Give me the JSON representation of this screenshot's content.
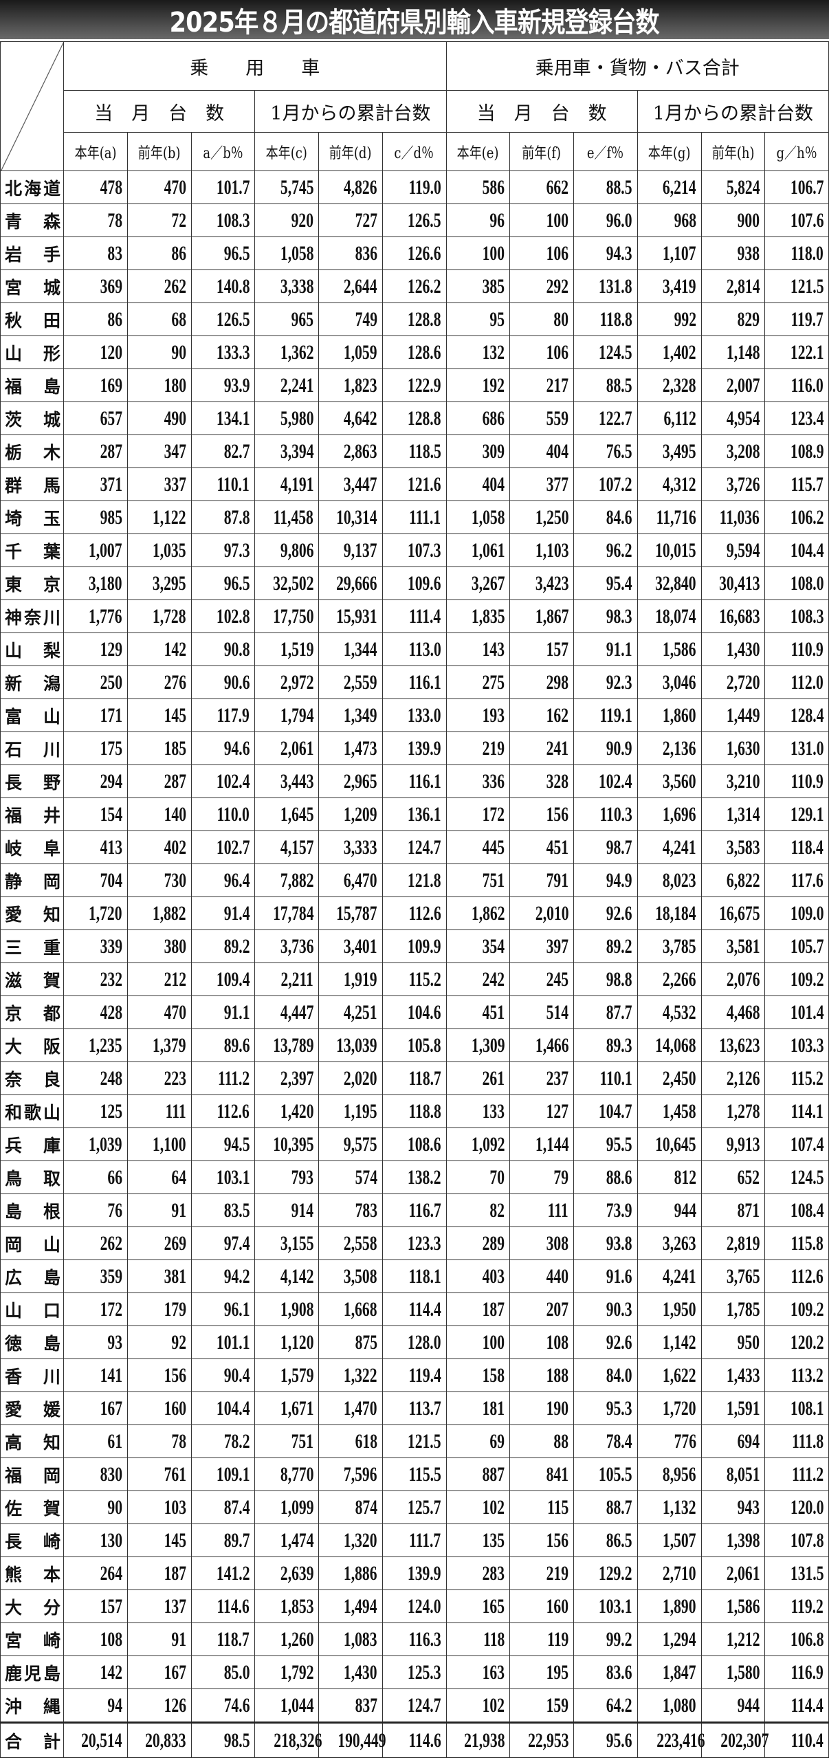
{
  "title": "2025年８月の都道府県別輸入車新規登録台数",
  "header": {
    "group1": "乗　　用　　車",
    "group2": "乗用車・貨物・バス合計",
    "sub": [
      "当　月　台　数",
      "1月からの累計台数",
      "当　月　台　数",
      "1月からの累計台数"
    ],
    "columns": [
      "本年(a)",
      "前年(b)",
      "a／b％",
      "本年(c)",
      "前年(d)",
      "c／d％",
      "本年(e)",
      "前年(f)",
      "e／f％",
      "本年(g)",
      "前年(h)",
      "g／h％"
    ]
  },
  "rows": [
    {
      "name": "北海道",
      "values": [
        "478",
        "470",
        "101.7",
        "5,745",
        "4,826",
        "119.0",
        "586",
        "662",
        "88.5",
        "6,214",
        "5,824",
        "106.7"
      ]
    },
    {
      "name": "青森",
      "values": [
        "78",
        "72",
        "108.3",
        "920",
        "727",
        "126.5",
        "96",
        "100",
        "96.0",
        "968",
        "900",
        "107.6"
      ]
    },
    {
      "name": "岩手",
      "values": [
        "83",
        "86",
        "96.5",
        "1,058",
        "836",
        "126.6",
        "100",
        "106",
        "94.3",
        "1,107",
        "938",
        "118.0"
      ]
    },
    {
      "name": "宮城",
      "values": [
        "369",
        "262",
        "140.8",
        "3,338",
        "2,644",
        "126.2",
        "385",
        "292",
        "131.8",
        "3,419",
        "2,814",
        "121.5"
      ]
    },
    {
      "name": "秋田",
      "values": [
        "86",
        "68",
        "126.5",
        "965",
        "749",
        "128.8",
        "95",
        "80",
        "118.8",
        "992",
        "829",
        "119.7"
      ]
    },
    {
      "name": "山形",
      "values": [
        "120",
        "90",
        "133.3",
        "1,362",
        "1,059",
        "128.6",
        "132",
        "106",
        "124.5",
        "1,402",
        "1,148",
        "122.1"
      ]
    },
    {
      "name": "福島",
      "values": [
        "169",
        "180",
        "93.9",
        "2,241",
        "1,823",
        "122.9",
        "192",
        "217",
        "88.5",
        "2,328",
        "2,007",
        "116.0"
      ]
    },
    {
      "name": "茨城",
      "values": [
        "657",
        "490",
        "134.1",
        "5,980",
        "4,642",
        "128.8",
        "686",
        "559",
        "122.7",
        "6,112",
        "4,954",
        "123.4"
      ]
    },
    {
      "name": "栃木",
      "values": [
        "287",
        "347",
        "82.7",
        "3,394",
        "2,863",
        "118.5",
        "309",
        "404",
        "76.5",
        "3,495",
        "3,208",
        "108.9"
      ]
    },
    {
      "name": "群馬",
      "values": [
        "371",
        "337",
        "110.1",
        "4,191",
        "3,447",
        "121.6",
        "404",
        "377",
        "107.2",
        "4,312",
        "3,726",
        "115.7"
      ]
    },
    {
      "name": "埼玉",
      "values": [
        "985",
        "1,122",
        "87.8",
        "11,458",
        "10,314",
        "111.1",
        "1,058",
        "1,250",
        "84.6",
        "11,716",
        "11,036",
        "106.2"
      ]
    },
    {
      "name": "千葉",
      "values": [
        "1,007",
        "1,035",
        "97.3",
        "9,806",
        "9,137",
        "107.3",
        "1,061",
        "1,103",
        "96.2",
        "10,015",
        "9,594",
        "104.4"
      ]
    },
    {
      "name": "東京",
      "values": [
        "3,180",
        "3,295",
        "96.5",
        "32,502",
        "29,666",
        "109.6",
        "3,267",
        "3,423",
        "95.4",
        "32,840",
        "30,413",
        "108.0"
      ]
    },
    {
      "name": "神奈川",
      "values": [
        "1,776",
        "1,728",
        "102.8",
        "17,750",
        "15,931",
        "111.4",
        "1,835",
        "1,867",
        "98.3",
        "18,074",
        "16,683",
        "108.3"
      ]
    },
    {
      "name": "山梨",
      "values": [
        "129",
        "142",
        "90.8",
        "1,519",
        "1,344",
        "113.0",
        "143",
        "157",
        "91.1",
        "1,586",
        "1,430",
        "110.9"
      ]
    },
    {
      "name": "新潟",
      "values": [
        "250",
        "276",
        "90.6",
        "2,972",
        "2,559",
        "116.1",
        "275",
        "298",
        "92.3",
        "3,046",
        "2,720",
        "112.0"
      ]
    },
    {
      "name": "富山",
      "values": [
        "171",
        "145",
        "117.9",
        "1,794",
        "1,349",
        "133.0",
        "193",
        "162",
        "119.1",
        "1,860",
        "1,449",
        "128.4"
      ]
    },
    {
      "name": "石川",
      "values": [
        "175",
        "185",
        "94.6",
        "2,061",
        "1,473",
        "139.9",
        "219",
        "241",
        "90.9",
        "2,136",
        "1,630",
        "131.0"
      ]
    },
    {
      "name": "長野",
      "values": [
        "294",
        "287",
        "102.4",
        "3,443",
        "2,965",
        "116.1",
        "336",
        "328",
        "102.4",
        "3,560",
        "3,210",
        "110.9"
      ]
    },
    {
      "name": "福井",
      "values": [
        "154",
        "140",
        "110.0",
        "1,645",
        "1,209",
        "136.1",
        "172",
        "156",
        "110.3",
        "1,696",
        "1,314",
        "129.1"
      ]
    },
    {
      "name": "岐阜",
      "values": [
        "413",
        "402",
        "102.7",
        "4,157",
        "3,333",
        "124.7",
        "445",
        "451",
        "98.7",
        "4,241",
        "3,583",
        "118.4"
      ]
    },
    {
      "name": "静岡",
      "values": [
        "704",
        "730",
        "96.4",
        "7,882",
        "6,470",
        "121.8",
        "751",
        "791",
        "94.9",
        "8,023",
        "6,822",
        "117.6"
      ]
    },
    {
      "name": "愛知",
      "values": [
        "1,720",
        "1,882",
        "91.4",
        "17,784",
        "15,787",
        "112.6",
        "1,862",
        "2,010",
        "92.6",
        "18,184",
        "16,675",
        "109.0"
      ]
    },
    {
      "name": "三重",
      "values": [
        "339",
        "380",
        "89.2",
        "3,736",
        "3,401",
        "109.9",
        "354",
        "397",
        "89.2",
        "3,785",
        "3,581",
        "105.7"
      ]
    },
    {
      "name": "滋賀",
      "values": [
        "232",
        "212",
        "109.4",
        "2,211",
        "1,919",
        "115.2",
        "242",
        "245",
        "98.8",
        "2,266",
        "2,076",
        "109.2"
      ]
    },
    {
      "name": "京都",
      "values": [
        "428",
        "470",
        "91.1",
        "4,447",
        "4,251",
        "104.6",
        "451",
        "514",
        "87.7",
        "4,532",
        "4,468",
        "101.4"
      ]
    },
    {
      "name": "大阪",
      "values": [
        "1,235",
        "1,379",
        "89.6",
        "13,789",
        "13,039",
        "105.8",
        "1,309",
        "1,466",
        "89.3",
        "14,068",
        "13,623",
        "103.3"
      ]
    },
    {
      "name": "奈良",
      "values": [
        "248",
        "223",
        "111.2",
        "2,397",
        "2,020",
        "118.7",
        "261",
        "237",
        "110.1",
        "2,450",
        "2,126",
        "115.2"
      ]
    },
    {
      "name": "和歌山",
      "values": [
        "125",
        "111",
        "112.6",
        "1,420",
        "1,195",
        "118.8",
        "133",
        "127",
        "104.7",
        "1,458",
        "1,278",
        "114.1"
      ]
    },
    {
      "name": "兵庫",
      "values": [
        "1,039",
        "1,100",
        "94.5",
        "10,395",
        "9,575",
        "108.6",
        "1,092",
        "1,144",
        "95.5",
        "10,645",
        "9,913",
        "107.4"
      ]
    },
    {
      "name": "鳥取",
      "values": [
        "66",
        "64",
        "103.1",
        "793",
        "574",
        "138.2",
        "70",
        "79",
        "88.6",
        "812",
        "652",
        "124.5"
      ]
    },
    {
      "name": "島根",
      "values": [
        "76",
        "91",
        "83.5",
        "914",
        "783",
        "116.7",
        "82",
        "111",
        "73.9",
        "944",
        "871",
        "108.4"
      ]
    },
    {
      "name": "岡山",
      "values": [
        "262",
        "269",
        "97.4",
        "3,155",
        "2,558",
        "123.3",
        "289",
        "308",
        "93.8",
        "3,263",
        "2,819",
        "115.8"
      ]
    },
    {
      "name": "広島",
      "values": [
        "359",
        "381",
        "94.2",
        "4,142",
        "3,508",
        "118.1",
        "403",
        "440",
        "91.6",
        "4,241",
        "3,765",
        "112.6"
      ]
    },
    {
      "name": "山口",
      "values": [
        "172",
        "179",
        "96.1",
        "1,908",
        "1,668",
        "114.4",
        "187",
        "207",
        "90.3",
        "1,950",
        "1,785",
        "109.2"
      ]
    },
    {
      "name": "徳島",
      "values": [
        "93",
        "92",
        "101.1",
        "1,120",
        "875",
        "128.0",
        "100",
        "108",
        "92.6",
        "1,142",
        "950",
        "120.2"
      ]
    },
    {
      "name": "香川",
      "values": [
        "141",
        "156",
        "90.4",
        "1,579",
        "1,322",
        "119.4",
        "158",
        "188",
        "84.0",
        "1,622",
        "1,433",
        "113.2"
      ]
    },
    {
      "name": "愛媛",
      "values": [
        "167",
        "160",
        "104.4",
        "1,671",
        "1,470",
        "113.7",
        "181",
        "190",
        "95.3",
        "1,720",
        "1,591",
        "108.1"
      ]
    },
    {
      "name": "高知",
      "values": [
        "61",
        "78",
        "78.2",
        "751",
        "618",
        "121.5",
        "69",
        "88",
        "78.4",
        "776",
        "694",
        "111.8"
      ]
    },
    {
      "name": "福岡",
      "values": [
        "830",
        "761",
        "109.1",
        "8,770",
        "7,596",
        "115.5",
        "887",
        "841",
        "105.5",
        "8,956",
        "8,051",
        "111.2"
      ]
    },
    {
      "name": "佐賀",
      "values": [
        "90",
        "103",
        "87.4",
        "1,099",
        "874",
        "125.7",
        "102",
        "115",
        "88.7",
        "1,132",
        "943",
        "120.0"
      ]
    },
    {
      "name": "長崎",
      "values": [
        "130",
        "145",
        "89.7",
        "1,474",
        "1,320",
        "111.7",
        "135",
        "156",
        "86.5",
        "1,507",
        "1,398",
        "107.8"
      ]
    },
    {
      "name": "熊本",
      "values": [
        "264",
        "187",
        "141.2",
        "2,639",
        "1,886",
        "139.9",
        "283",
        "219",
        "129.2",
        "2,710",
        "2,061",
        "131.5"
      ]
    },
    {
      "name": "大分",
      "values": [
        "157",
        "137",
        "114.6",
        "1,853",
        "1,494",
        "124.0",
        "165",
        "160",
        "103.1",
        "1,890",
        "1,586",
        "119.2"
      ]
    },
    {
      "name": "宮崎",
      "values": [
        "108",
        "91",
        "118.7",
        "1,260",
        "1,083",
        "116.3",
        "118",
        "119",
        "99.2",
        "1,294",
        "1,212",
        "106.8"
      ]
    },
    {
      "name": "鹿児島",
      "values": [
        "142",
        "167",
        "85.0",
        "1,792",
        "1,430",
        "125.3",
        "163",
        "195",
        "83.6",
        "1,847",
        "1,580",
        "116.9"
      ]
    },
    {
      "name": "沖縄",
      "values": [
        "94",
        "126",
        "74.6",
        "1,044",
        "837",
        "124.7",
        "102",
        "159",
        "64.2",
        "1,080",
        "944",
        "114.4"
      ]
    }
  ],
  "total": {
    "name": "合計",
    "values": [
      "20,514",
      "20,833",
      "98.5",
      "218,326",
      "190,449",
      "114.6",
      "21,938",
      "22,953",
      "95.6",
      "223,416",
      "202,307",
      "110.4"
    ]
  }
}
